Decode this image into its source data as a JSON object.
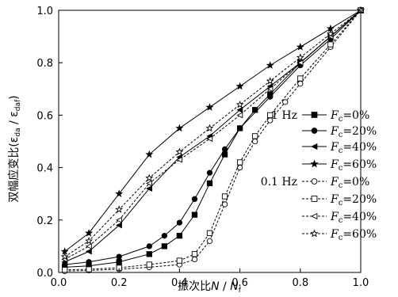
{
  "chart_data": {
    "type": "line",
    "xlabel_prefix": "振次比",
    "xlabel_num": "N",
    "xlabel_den": "N",
    "xlabel_den_sub": "f",
    "ylabel": "双幅应变比(ε",
    "ylabel_sub1": "da",
    "ylabel_mid": " / ε",
    "ylabel_sub2": "daf",
    "ylabel_end": ")",
    "xlim": [
      0,
      1
    ],
    "ylim": [
      0,
      1
    ],
    "xticks": [
      "0.0",
      "0.2",
      "0.4",
      "0.6",
      "0.8",
      "1.0"
    ],
    "yticks": [
      "0.0",
      "0.2",
      "0.4",
      "0.6",
      "0.8",
      "1.0"
    ],
    "grid": false,
    "legend_position": "bottom-right",
    "groups": [
      {
        "label": "1 Hz",
        "line_style": "solid"
      },
      {
        "label": "0.1 Hz",
        "line_style": "dashed"
      }
    ],
    "series": [
      {
        "name": "Fc=0%",
        "group": 0,
        "marker": "square-filled",
        "x": [
          0.02,
          0.1,
          0.2,
          0.3,
          0.35,
          0.4,
          0.45,
          0.5,
          0.55,
          0.6,
          0.65,
          0.7,
          0.8,
          0.9,
          1.0
        ],
        "y": [
          0.02,
          0.025,
          0.04,
          0.07,
          0.1,
          0.14,
          0.22,
          0.34,
          0.45,
          0.55,
          0.62,
          0.68,
          0.8,
          0.9,
          1.0
        ]
      },
      {
        "name": "Fc=20%",
        "group": 0,
        "marker": "circle-filled",
        "x": [
          0.02,
          0.1,
          0.2,
          0.3,
          0.35,
          0.4,
          0.45,
          0.5,
          0.55,
          0.6,
          0.7,
          0.8,
          0.9,
          1.0
        ],
        "y": [
          0.03,
          0.04,
          0.06,
          0.1,
          0.14,
          0.19,
          0.28,
          0.38,
          0.47,
          0.55,
          0.67,
          0.79,
          0.89,
          1.0
        ]
      },
      {
        "name": "Fc=40%",
        "group": 0,
        "marker": "triangle-left-filled",
        "x": [
          0.02,
          0.1,
          0.2,
          0.3,
          0.4,
          0.5,
          0.6,
          0.7,
          0.8,
          0.9,
          1.0
        ],
        "y": [
          0.04,
          0.08,
          0.18,
          0.32,
          0.44,
          0.52,
          0.62,
          0.71,
          0.8,
          0.9,
          1.0
        ]
      },
      {
        "name": "Fc=60%",
        "group": 0,
        "marker": "star-filled",
        "x": [
          0.02,
          0.1,
          0.2,
          0.3,
          0.4,
          0.5,
          0.6,
          0.7,
          0.8,
          0.9,
          1.0
        ],
        "y": [
          0.08,
          0.15,
          0.3,
          0.45,
          0.55,
          0.63,
          0.71,
          0.79,
          0.86,
          0.93,
          1.0
        ]
      },
      {
        "name": "Fc=0%",
        "group": 1,
        "marker": "circle-open",
        "x": [
          0.02,
          0.1,
          0.2,
          0.3,
          0.4,
          0.45,
          0.5,
          0.55,
          0.6,
          0.65,
          0.7,
          0.75,
          0.8,
          0.9,
          1.0
        ],
        "y": [
          0.005,
          0.008,
          0.012,
          0.02,
          0.03,
          0.05,
          0.12,
          0.26,
          0.4,
          0.5,
          0.58,
          0.65,
          0.72,
          0.86,
          1.0
        ]
      },
      {
        "name": "Fc=20%",
        "group": 1,
        "marker": "square-open",
        "x": [
          0.02,
          0.1,
          0.2,
          0.3,
          0.4,
          0.45,
          0.5,
          0.55,
          0.6,
          0.65,
          0.7,
          0.8,
          0.9,
          1.0
        ],
        "y": [
          0.01,
          0.012,
          0.018,
          0.03,
          0.045,
          0.07,
          0.15,
          0.29,
          0.42,
          0.52,
          0.6,
          0.74,
          0.87,
          1.0
        ]
      },
      {
        "name": "Fc=40%",
        "group": 1,
        "marker": "triangle-left-open",
        "x": [
          0.02,
          0.1,
          0.2,
          0.3,
          0.4,
          0.5,
          0.6,
          0.7,
          0.8,
          0.9,
          1.0
        ],
        "y": [
          0.05,
          0.1,
          0.2,
          0.34,
          0.43,
          0.51,
          0.6,
          0.7,
          0.8,
          0.9,
          1.0
        ]
      },
      {
        "name": "Fc=60%",
        "group": 1,
        "marker": "star-open",
        "x": [
          0.02,
          0.1,
          0.2,
          0.3,
          0.4,
          0.5,
          0.6,
          0.7,
          0.8,
          0.9,
          1.0
        ],
        "y": [
          0.06,
          0.12,
          0.24,
          0.36,
          0.46,
          0.55,
          0.64,
          0.73,
          0.82,
          0.91,
          1.0
        ]
      }
    ],
    "legend_entries": [
      {
        "var": "F",
        "sub": "c",
        "rest": "=0%"
      },
      {
        "var": "F",
        "sub": "c",
        "rest": "=20%"
      },
      {
        "var": "F",
        "sub": "c",
        "rest": "=40%"
      },
      {
        "var": "F",
        "sub": "c",
        "rest": "=60%"
      },
      {
        "var": "F",
        "sub": "c",
        "rest": "=0%"
      },
      {
        "var": "F",
        "sub": "c",
        "rest": "=20%"
      },
      {
        "var": "F",
        "sub": "c",
        "rest": "=40%"
      },
      {
        "var": "F",
        "sub": "c",
        "rest": "=60%"
      }
    ]
  }
}
